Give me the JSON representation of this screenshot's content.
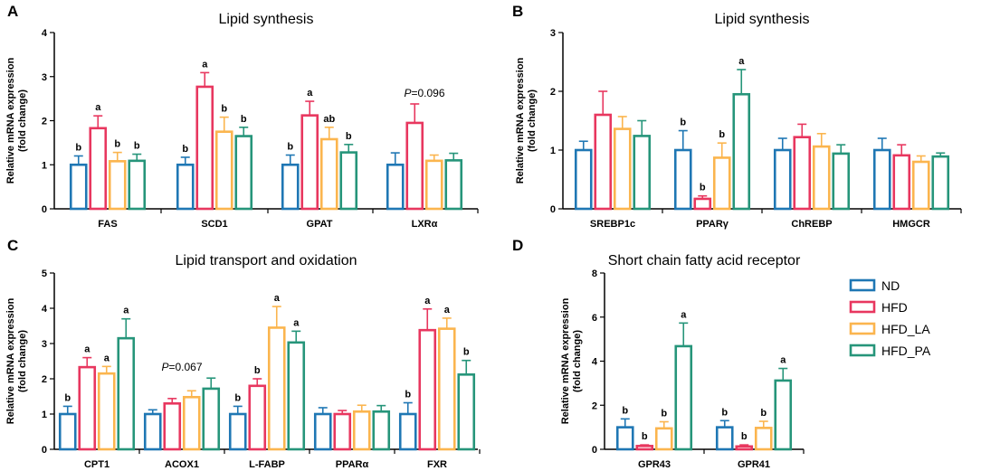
{
  "chart_data": [
    {
      "panel": "A",
      "type": "bar",
      "title": "Lipid synthesis",
      "ylabel": [
        "Relative mRNA expression",
        "(fold change)"
      ],
      "ylim": [
        0,
        4
      ],
      "yticks": [
        0,
        1,
        2,
        3,
        4
      ],
      "categories": [
        "FAS",
        "SCD1",
        "GPAT",
        "LXRα"
      ],
      "series": [
        {
          "name": "ND",
          "values": [
            1.0,
            1.0,
            1.0,
            1.0
          ],
          "errors": [
            0.2,
            0.17,
            0.22,
            0.27
          ],
          "labels": [
            "b",
            "b",
            "b",
            ""
          ]
        },
        {
          "name": "HFD",
          "values": [
            1.83,
            2.77,
            2.12,
            1.95
          ],
          "errors": [
            0.28,
            0.32,
            0.32,
            0.43
          ],
          "labels": [
            "a",
            "a",
            "a",
            ""
          ]
        },
        {
          "name": "HFD_LA",
          "values": [
            1.08,
            1.75,
            1.58,
            1.09
          ],
          "errors": [
            0.2,
            0.33,
            0.27,
            0.13
          ],
          "labels": [
            "b",
            "b",
            "ab",
            ""
          ]
        },
        {
          "name": "HFD_PA",
          "values": [
            1.09,
            1.65,
            1.28,
            1.1
          ],
          "errors": [
            0.15,
            0.2,
            0.18,
            0.16
          ],
          "labels": [
            "b",
            "b",
            "b",
            ""
          ]
        }
      ],
      "annotations": [
        {
          "category": "LXRα",
          "text_p": "P",
          "text_value": "=0.096"
        }
      ]
    },
    {
      "panel": "B",
      "type": "bar",
      "title": "Lipid synthesis",
      "ylabel": [
        "Relative mRNA expression",
        "(fold change)"
      ],
      "ylim": [
        0,
        3
      ],
      "yticks": [
        0,
        1,
        2,
        3
      ],
      "categories": [
        "SREBP1c",
        "PPARγ",
        "ChREBP",
        "HMGCR"
      ],
      "series": [
        {
          "name": "ND",
          "values": [
            1.0,
            1.0,
            1.0,
            1.0
          ],
          "errors": [
            0.15,
            0.33,
            0.2,
            0.2
          ],
          "labels": [
            "",
            "b",
            "",
            ""
          ]
        },
        {
          "name": "HFD",
          "values": [
            1.6,
            0.17,
            1.22,
            0.91
          ],
          "errors": [
            0.4,
            0.05,
            0.22,
            0.18
          ],
          "labels": [
            "",
            "b",
            "",
            ""
          ]
        },
        {
          "name": "HFD_LA",
          "values": [
            1.36,
            0.87,
            1.06,
            0.8
          ],
          "errors": [
            0.21,
            0.25,
            0.22,
            0.1
          ],
          "labels": [
            "",
            "b",
            "",
            ""
          ]
        },
        {
          "name": "HFD_PA",
          "values": [
            1.24,
            1.95,
            0.94,
            0.89
          ],
          "errors": [
            0.26,
            0.42,
            0.15,
            0.06
          ],
          "labels": [
            "",
            "a",
            "",
            ""
          ]
        }
      ],
      "annotations": []
    },
    {
      "panel": "C",
      "type": "bar",
      "title": "Lipid transport and oxidation",
      "ylabel": [
        "Relative mRNA expression",
        "(fold change)"
      ],
      "ylim": [
        0,
        5
      ],
      "yticks": [
        0,
        1,
        2,
        3,
        4,
        5
      ],
      "categories": [
        "CPT1",
        "ACOX1",
        "L-FABP",
        "PPARα",
        "FXR"
      ],
      "series": [
        {
          "name": "ND",
          "values": [
            1.0,
            1.0,
            1.0,
            1.0,
            1.0
          ],
          "errors": [
            0.22,
            0.12,
            0.22,
            0.18,
            0.32
          ],
          "labels": [
            "b",
            "",
            "b",
            "",
            "b"
          ]
        },
        {
          "name": "HFD",
          "values": [
            2.33,
            1.3,
            1.8,
            1.0,
            3.38
          ],
          "errors": [
            0.27,
            0.14,
            0.2,
            0.1,
            0.6
          ],
          "labels": [
            "a",
            "",
            "b",
            "",
            "a"
          ]
        },
        {
          "name": "HFD_LA",
          "values": [
            2.15,
            1.48,
            3.45,
            1.07,
            3.42
          ],
          "errors": [
            0.2,
            0.18,
            0.6,
            0.18,
            0.3
          ],
          "labels": [
            "a",
            "",
            "a",
            "",
            "a"
          ]
        },
        {
          "name": "HFD_PA",
          "values": [
            3.15,
            1.72,
            3.03,
            1.07,
            2.12
          ],
          "errors": [
            0.55,
            0.3,
            0.32,
            0.17,
            0.4
          ],
          "labels": [
            "a",
            "",
            "a",
            "",
            "b"
          ]
        }
      ],
      "annotations": [
        {
          "category": "ACOX1",
          "text_p": "P",
          "text_value": "=0.067"
        }
      ]
    },
    {
      "panel": "D",
      "type": "bar",
      "title": "Short chain fatty acid receptor",
      "ylabel": [
        "Relative mRNA expression",
        "(fold change)"
      ],
      "ylim": [
        0,
        8
      ],
      "yticks": [
        0,
        2,
        4,
        6,
        8
      ],
      "categories": [
        "GPR43",
        "GPR41"
      ],
      "series": [
        {
          "name": "ND",
          "values": [
            1.0,
            1.0
          ],
          "errors": [
            0.38,
            0.3
          ],
          "labels": [
            "b",
            "b"
          ]
        },
        {
          "name": "HFD",
          "values": [
            0.15,
            0.13
          ],
          "errors": [
            0.05,
            0.07
          ],
          "labels": [
            "b",
            "b"
          ]
        },
        {
          "name": "HFD_LA",
          "values": [
            0.95,
            0.97
          ],
          "errors": [
            0.3,
            0.3
          ],
          "labels": [
            "b",
            "b"
          ]
        },
        {
          "name": "HFD_PA",
          "values": [
            4.68,
            3.12
          ],
          "errors": [
            1.05,
            0.55
          ],
          "labels": [
            "a",
            "a"
          ]
        }
      ],
      "annotations": []
    }
  ],
  "legend": {
    "entries": [
      {
        "name": "ND",
        "color": "#1f77b4"
      },
      {
        "name": "HFD",
        "color": "#e8375f"
      },
      {
        "name": "HFD_LA",
        "color": "#fbb54e"
      },
      {
        "name": "HFD_PA",
        "color": "#26957a"
      }
    ]
  }
}
